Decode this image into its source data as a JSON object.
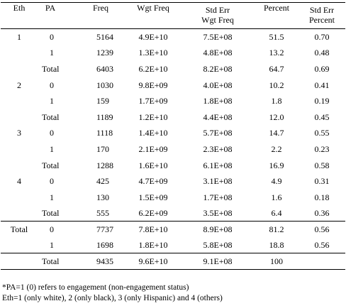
{
  "table": {
    "headers": {
      "eth": "Eth",
      "pa": "PA",
      "freq": "Freq",
      "wgt_freq": "Wgt Freq",
      "se_wgt_freq_1": "Std Err",
      "se_wgt_freq_2": "Wgt Freq",
      "percent": "Percent",
      "se_percent_1": "Std Err",
      "se_percent_2": "Percent"
    },
    "groups": [
      {
        "eth": "1",
        "rows": [
          {
            "pa": "0",
            "freq": "5164",
            "wgt": "4.9E+10",
            "se_wgt": "7.5E+08",
            "pct": "51.5",
            "se_pct": "0.70"
          },
          {
            "pa": "1",
            "freq": "1239",
            "wgt": "1.3E+10",
            "se_wgt": "4.8E+08",
            "pct": "13.2",
            "se_pct": "0.48"
          },
          {
            "pa": "Total",
            "freq": "6403",
            "wgt": "6.2E+10",
            "se_wgt": "8.2E+08",
            "pct": "64.7",
            "se_pct": "0.69"
          }
        ]
      },
      {
        "eth": "2",
        "rows": [
          {
            "pa": "0",
            "freq": "1030",
            "wgt": "9.8E+09",
            "se_wgt": "4.0E+08",
            "pct": "10.2",
            "se_pct": "0.41"
          },
          {
            "pa": "1",
            "freq": "159",
            "wgt": "1.7E+09",
            "se_wgt": "1.8E+08",
            "pct": "1.8",
            "se_pct": "0.19"
          },
          {
            "pa": "Total",
            "freq": "1189",
            "wgt": "1.2E+10",
            "se_wgt": "4.4E+08",
            "pct": "12.0",
            "se_pct": "0.45"
          }
        ]
      },
      {
        "eth": "3",
        "rows": [
          {
            "pa": "0",
            "freq": "1118",
            "wgt": "1.4E+10",
            "se_wgt": "5.7E+08",
            "pct": "14.7",
            "se_pct": "0.55"
          },
          {
            "pa": "1",
            "freq": "170",
            "wgt": "2.1E+09",
            "se_wgt": "2.3E+08",
            "pct": "2.2",
            "se_pct": "0.23"
          },
          {
            "pa": "Total",
            "freq": "1288",
            "wgt": "1.6E+10",
            "se_wgt": "6.1E+08",
            "pct": "16.9",
            "se_pct": "0.58"
          }
        ]
      },
      {
        "eth": "4",
        "rows": [
          {
            "pa": "0",
            "freq": "425",
            "wgt": "4.7E+09",
            "se_wgt": "3.1E+08",
            "pct": "4.9",
            "se_pct": "0.31"
          },
          {
            "pa": "1",
            "freq": "130",
            "wgt": "1.5E+09",
            "se_wgt": "1.7E+08",
            "pct": "1.6",
            "se_pct": "0.18"
          },
          {
            "pa": "Total",
            "freq": "555",
            "wgt": "6.2E+09",
            "se_wgt": "3.5E+08",
            "pct": "6.4",
            "se_pct": "0.36"
          }
        ]
      },
      {
        "eth": "Total",
        "rows": [
          {
            "pa": "0",
            "freq": "7737",
            "wgt": "7.8E+10",
            "se_wgt": "8.9E+08",
            "pct": "81.2",
            "se_pct": "0.56"
          },
          {
            "pa": "1",
            "freq": "1698",
            "wgt": "1.8E+10",
            "se_wgt": "5.8E+08",
            "pct": "18.8",
            "se_pct": "0.56"
          }
        ]
      }
    ],
    "grand_total": {
      "eth": "",
      "pa": "Total",
      "freq": "9435",
      "wgt": "9.6E+10",
      "se_wgt": "9.1E+08",
      "pct": "100",
      "se_pct": ""
    }
  },
  "notes": {
    "line1": "*PA=1 (0) refers to engagement (non-engagement status)",
    "line2": "Eth=1 (only white), 2 (only black), 3 (only Hispanic) and 4 (others)"
  }
}
